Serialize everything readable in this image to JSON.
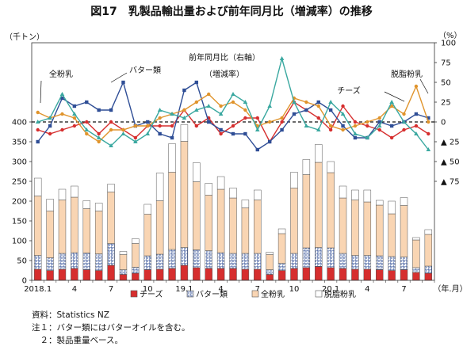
{
  "title": "図17　乳製品輸出量および前年同月比（増減率）の推移",
  "chart_data": {
    "type": "bar",
    "left_axis": {
      "unit": "（千トン）",
      "min": 0,
      "max": 400,
      "ticks": [
        0,
        50,
        100,
        150,
        200,
        250,
        300,
        350,
        400
      ]
    },
    "right_axis": {
      "unit": "（%）",
      "min": -75,
      "max": 100,
      "tick_labels": [
        "100",
        "75",
        "50",
        "25",
        "0",
        "▲ 25",
        "▲ 50",
        "▲ 75"
      ],
      "tick_values": [
        100,
        75,
        50,
        25,
        0,
        -25,
        -50,
        -75
      ]
    },
    "x_tick_labels": [
      {
        "i": 0,
        "label": "2018.1"
      },
      {
        "i": 3,
        "label": "4"
      },
      {
        "i": 6,
        "label": "7"
      },
      {
        "i": 9,
        "label": "10"
      },
      {
        "i": 12,
        "label": "19.1"
      },
      {
        "i": 15,
        "label": "4"
      },
      {
        "i": 18,
        "label": "7"
      },
      {
        "i": 21,
        "label": "10"
      },
      {
        "i": 24,
        "label": "20.1"
      },
      {
        "i": 27,
        "label": "4"
      },
      {
        "i": 30,
        "label": "7"
      }
    ],
    "x_unit": "（年.月）",
    "series": [
      {
        "name": "チーズ",
        "color": "#d62e2e",
        "values": [
          28,
          25,
          28,
          30,
          27,
          25,
          38,
          15,
          18,
          27,
          28,
          30,
          38,
          32,
          30,
          30,
          30,
          28,
          28,
          15,
          25,
          30,
          32,
          35,
          32,
          30,
          28,
          28,
          27,
          25,
          27,
          20,
          18
        ]
      },
      {
        "name": "バター類",
        "color": "#2f4e96",
        "values": [
          35,
          32,
          40,
          40,
          42,
          42,
          55,
          12,
          15,
          35,
          38,
          48,
          45,
          45,
          45,
          40,
          38,
          40,
          40,
          12,
          18,
          38,
          50,
          48,
          50,
          38,
          35,
          35,
          35,
          35,
          32,
          12,
          18
        ]
      },
      {
        "name": "全粉乳",
        "color": "#f4c69a",
        "values": [
          150,
          118,
          135,
          140,
          112,
          108,
          130,
          38,
          60,
          105,
          135,
          195,
          268,
          172,
          140,
          160,
          140,
          115,
          135,
          38,
          75,
          165,
          185,
          215,
          190,
          140,
          140,
          135,
          128,
          108,
          130,
          70,
          80
        ]
      },
      {
        "name": "脱脂粉乳",
        "color": "#ffffff",
        "values": [
          45,
          30,
          27,
          28,
          20,
          20,
          20,
          8,
          12,
          25,
          70,
          72,
          42,
          48,
          30,
          32,
          25,
          20,
          25,
          6,
          12,
          40,
          38,
          45,
          28,
          30,
          25,
          30,
          12,
          32,
          20,
          6,
          12
        ]
      }
    ],
    "yoy_series": [
      {
        "name": "チーズ",
        "color": "#d62e2e",
        "marker": "circle",
        "values": [
          -10,
          -15,
          -10,
          -5,
          0,
          -15,
          0,
          -10,
          -20,
          -5,
          -5,
          -5,
          15,
          -5,
          5,
          -15,
          -5,
          5,
          5,
          -25,
          0,
          25,
          15,
          5,
          -10,
          20,
          0,
          -5,
          -10,
          -20,
          -10,
          -5,
          -15
        ]
      },
      {
        "name": "バター類",
        "color": "#2f4e96",
        "marker": "square",
        "values": [
          -25,
          -5,
          30,
          20,
          25,
          15,
          15,
          50,
          -5,
          0,
          -15,
          -20,
          40,
          50,
          0,
          -10,
          -15,
          -15,
          -35,
          -25,
          -10,
          10,
          15,
          25,
          15,
          -5,
          -20,
          -20,
          0,
          -5,
          0,
          10,
          5
        ]
      },
      {
        "name": "全粉乳",
        "color": "#e0942c",
        "marker": "circle",
        "values": [
          12,
          5,
          10,
          5,
          -15,
          -25,
          -10,
          -10,
          -5,
          -5,
          5,
          10,
          15,
          25,
          35,
          20,
          25,
          15,
          -5,
          0,
          5,
          30,
          25,
          20,
          -5,
          -10,
          -5,
          0,
          5,
          20,
          10,
          45,
          0
        ]
      },
      {
        "name": "脱脂粉乳",
        "color": "#3aa8a0",
        "marker": "triangle",
        "values": [
          0,
          5,
          35,
          10,
          -10,
          -20,
          -30,
          -15,
          -25,
          -15,
          15,
          10,
          5,
          15,
          20,
          10,
          35,
          25,
          -10,
          20,
          80,
          25,
          -5,
          -10,
          25,
          10,
          -15,
          -20,
          -5,
          25,
          0,
          -15,
          -35
        ]
      }
    ],
    "annotations": [
      {
        "text": "前年同月比（右軸）"
      },
      {
        "text": "（増減率）"
      },
      {
        "text": "全粉乳"
      },
      {
        "text": "バター類"
      },
      {
        "text": "チーズ"
      },
      {
        "text": "脱脂粉乳"
      }
    ],
    "grid": false,
    "legend_position": "bottom"
  },
  "notes": [
    "資料：Statistics NZ",
    "注１：バター類にはバターオイルを含む。",
    "　２：製品重量ベース。"
  ]
}
